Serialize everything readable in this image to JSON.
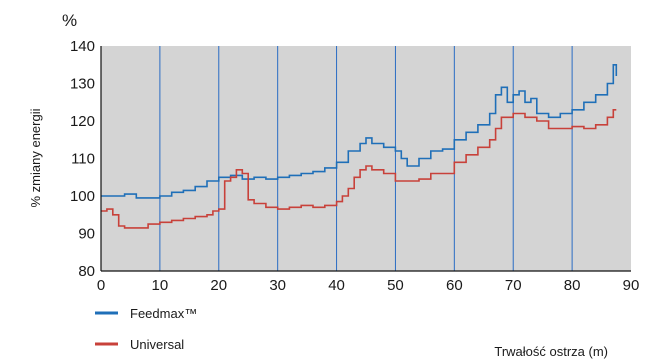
{
  "chart_data": {
    "type": "line",
    "unit_label": "%",
    "ylabel": "% zmiany energii",
    "xlabel": "Trwałość ostrza (m)",
    "xlim": [
      0,
      90
    ],
    "ylim": [
      80,
      140
    ],
    "x_ticks": [
      0,
      10,
      20,
      30,
      40,
      50,
      60,
      70,
      80,
      90
    ],
    "y_ticks": [
      80,
      90,
      100,
      110,
      120,
      130,
      140
    ],
    "grid": "vertical",
    "legend_position": "bottom-left",
    "series": [
      {
        "name": "Feedmax™",
        "color": "#1f6fb8",
        "points": [
          [
            0,
            100
          ],
          [
            2,
            100
          ],
          [
            4,
            100.5
          ],
          [
            6,
            99.5
          ],
          [
            8,
            99.5
          ],
          [
            10,
            100
          ],
          [
            12,
            101
          ],
          [
            14,
            101.5
          ],
          [
            16,
            102.5
          ],
          [
            18,
            104
          ],
          [
            20,
            105
          ],
          [
            22,
            105.5
          ],
          [
            24,
            104.5
          ],
          [
            26,
            105
          ],
          [
            28,
            104.5
          ],
          [
            30,
            105
          ],
          [
            32,
            105.5
          ],
          [
            34,
            106
          ],
          [
            36,
            106.5
          ],
          [
            38,
            107.5
          ],
          [
            40,
            109
          ],
          [
            42,
            112
          ],
          [
            44,
            114
          ],
          [
            45,
            115.5
          ],
          [
            46,
            114
          ],
          [
            48,
            113
          ],
          [
            50,
            112
          ],
          [
            51,
            110
          ],
          [
            52,
            108
          ],
          [
            54,
            110
          ],
          [
            56,
            112
          ],
          [
            58,
            112.5
          ],
          [
            60,
            115
          ],
          [
            62,
            117
          ],
          [
            64,
            119
          ],
          [
            66,
            122
          ],
          [
            67,
            127
          ],
          [
            68,
            129
          ],
          [
            69,
            125
          ],
          [
            70,
            127
          ],
          [
            71,
            128
          ],
          [
            72,
            125
          ],
          [
            73,
            126
          ],
          [
            74,
            122
          ],
          [
            76,
            121
          ],
          [
            78,
            122
          ],
          [
            80,
            123
          ],
          [
            82,
            125
          ],
          [
            84,
            127
          ],
          [
            86,
            130
          ],
          [
            87,
            135
          ],
          [
            87.5,
            132
          ]
        ]
      },
      {
        "name": "Universal",
        "color": "#c8413a",
        "points": [
          [
            0,
            96
          ],
          [
            1,
            96.5
          ],
          [
            2,
            95
          ],
          [
            3,
            92
          ],
          [
            4,
            91.5
          ],
          [
            6,
            91.5
          ],
          [
            8,
            92.5
          ],
          [
            10,
            93
          ],
          [
            12,
            93.5
          ],
          [
            14,
            94
          ],
          [
            16,
            94.5
          ],
          [
            18,
            95
          ],
          [
            19,
            96
          ],
          [
            20,
            96.5
          ],
          [
            21,
            104
          ],
          [
            22,
            105
          ],
          [
            23,
            107
          ],
          [
            24,
            106
          ],
          [
            25,
            99
          ],
          [
            26,
            98
          ],
          [
            28,
            97
          ],
          [
            30,
            96.5
          ],
          [
            32,
            97
          ],
          [
            34,
            97.5
          ],
          [
            36,
            97
          ],
          [
            38,
            97.5
          ],
          [
            40,
            98.5
          ],
          [
            41,
            100
          ],
          [
            42,
            102
          ],
          [
            43,
            105
          ],
          [
            44,
            107
          ],
          [
            45,
            108
          ],
          [
            46,
            107
          ],
          [
            48,
            106
          ],
          [
            50,
            104
          ],
          [
            52,
            104
          ],
          [
            54,
            104.5
          ],
          [
            56,
            106
          ],
          [
            58,
            106
          ],
          [
            60,
            109
          ],
          [
            62,
            111
          ],
          [
            64,
            113
          ],
          [
            66,
            115
          ],
          [
            67,
            118
          ],
          [
            68,
            121
          ],
          [
            70,
            122
          ],
          [
            72,
            121
          ],
          [
            74,
            120
          ],
          [
            76,
            118
          ],
          [
            78,
            118
          ],
          [
            80,
            118.5
          ],
          [
            82,
            118
          ],
          [
            84,
            119
          ],
          [
            86,
            121
          ],
          [
            87,
            123
          ],
          [
            87.5,
            123
          ]
        ]
      }
    ]
  }
}
